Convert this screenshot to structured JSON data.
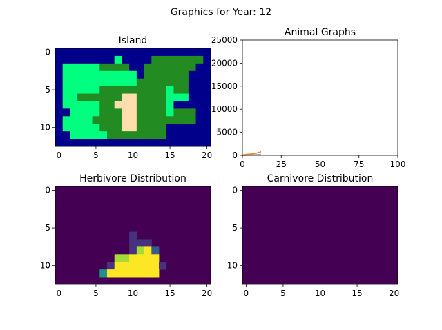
{
  "figure": {
    "suptitle": "Graphics for Year: 12"
  },
  "colors": {
    "ocean": "#00008b",
    "lowland": "#00ff7f",
    "highland": "#228b22",
    "desert": "#ffdead",
    "herb_series": "#1f77b4",
    "carn_series": "#ff7f0e",
    "viridis_0": "#440154",
    "viridis_1": "#46327e",
    "viridis_2": "#365c8d",
    "viridis_3": "#21918c",
    "viridis_4": "#3bbb75",
    "viridis_5": "#a5db36",
    "viridis_6": "#fde725"
  },
  "chart_data": [
    {
      "id": "island",
      "type": "heatmap",
      "title": "Island",
      "xlim": [
        -0.5,
        20.5
      ],
      "ylim": [
        12.5,
        -0.5
      ],
      "xticks": [
        0,
        5,
        10,
        15,
        20
      ],
      "yticks": [
        0,
        5,
        10
      ],
      "legend": {
        "W": "ocean",
        "L": "lowland",
        "H": "highland",
        "D": "desert"
      },
      "grid": [
        "WWWWWWWWWWWWWWWWWWWWW",
        "WWWWWWWWLWWWWHHHHHHHW",
        "WLLLLLHHHHWWHHHHHHHWW",
        "WLLLLLLLLLLWHHHHHHWWW",
        "WLLLLLLLLLLHHHHHHHWWW",
        "WLLLLLHHHHHHHHHLHHWWW",
        "WLLHHHHHHDDHHHHLLLWWW",
        "WLLLLLHHDDDHHHHLWWWWW",
        "WWLLLLHHHDDHHHHLHHHWW",
        "WLLLLHHHHDDHHHHHHHHWW",
        "WLLLLLHHHDDHHHHWWWWWW",
        "WWLLLLLHHHHHHHHWWWWWW",
        "WWWWWWWWWWWWWWWWWWWWW"
      ]
    },
    {
      "id": "animals",
      "type": "line",
      "title": "Animal Graphs",
      "xlim": [
        0,
        100
      ],
      "ylim": [
        0,
        25000
      ],
      "xticks": [
        0,
        25,
        50,
        75,
        100
      ],
      "yticks": [
        0,
        5000,
        10000,
        15000,
        20000,
        25000
      ],
      "series": [
        {
          "color_key": "herb_series",
          "x": [
            0,
            1,
            2,
            3,
            4,
            5,
            6,
            7,
            8,
            9,
            10,
            11,
            12
          ],
          "y": [
            10,
            20,
            30,
            40,
            50,
            60,
            70,
            80,
            90,
            100,
            110,
            120,
            130
          ]
        },
        {
          "color_key": "carn_series",
          "x": [
            0,
            1,
            2,
            3,
            4,
            5,
            6,
            7,
            8,
            9,
            10,
            11,
            12
          ],
          "y": [
            50,
            120,
            180,
            230,
            260,
            290,
            320,
            370,
            430,
            500,
            580,
            680,
            790
          ]
        }
      ]
    },
    {
      "id": "herbivores",
      "type": "heatmap",
      "title": "Herbivore Distribution",
      "xlim": [
        -0.5,
        20.5
      ],
      "ylim": [
        12.5,
        -0.5
      ],
      "xticks": [
        0,
        5,
        10,
        15,
        20
      ],
      "yticks": [
        0,
        5,
        10
      ],
      "colormap": [
        "viridis_0",
        "viridis_1",
        "viridis_2",
        "viridis_3",
        "viridis_4",
        "viridis_5",
        "viridis_6"
      ],
      "cells": [
        {
          "r": 6,
          "c": 10,
          "v": 1
        },
        {
          "r": 7,
          "c": 10,
          "v": 1
        },
        {
          "r": 7,
          "c": 11,
          "v": 1
        },
        {
          "r": 7,
          "c": 12,
          "v": 1
        },
        {
          "r": 8,
          "c": 10,
          "v": 1
        },
        {
          "r": 8,
          "c": 11,
          "v": 5
        },
        {
          "r": 8,
          "c": 12,
          "v": 6
        },
        {
          "r": 8,
          "c": 13,
          "v": 2
        },
        {
          "r": 9,
          "c": 8,
          "v": 5
        },
        {
          "r": 9,
          "c": 9,
          "v": 5
        },
        {
          "r": 9,
          "c": 10,
          "v": 6
        },
        {
          "r": 9,
          "c": 11,
          "v": 6
        },
        {
          "r": 9,
          "c": 12,
          "v": 6
        },
        {
          "r": 9,
          "c": 13,
          "v": 6
        },
        {
          "r": 10,
          "c": 7,
          "v": 1
        },
        {
          "r": 10,
          "c": 8,
          "v": 6
        },
        {
          "r": 10,
          "c": 9,
          "v": 6
        },
        {
          "r": 10,
          "c": 10,
          "v": 6
        },
        {
          "r": 10,
          "c": 11,
          "v": 6
        },
        {
          "r": 10,
          "c": 12,
          "v": 6
        },
        {
          "r": 10,
          "c": 13,
          "v": 6
        },
        {
          "r": 10,
          "c": 14,
          "v": 1
        },
        {
          "r": 11,
          "c": 6,
          "v": 3
        },
        {
          "r": 11,
          "c": 7,
          "v": 6
        },
        {
          "r": 11,
          "c": 8,
          "v": 6
        },
        {
          "r": 11,
          "c": 9,
          "v": 6
        },
        {
          "r": 11,
          "c": 10,
          "v": 6
        },
        {
          "r": 11,
          "c": 11,
          "v": 6
        },
        {
          "r": 11,
          "c": 12,
          "v": 6
        },
        {
          "r": 11,
          "c": 13,
          "v": 6
        }
      ]
    },
    {
      "id": "carnivores",
      "type": "heatmap",
      "title": "Carnivore Distribution",
      "xlim": [
        -0.5,
        20.5
      ],
      "ylim": [
        12.5,
        -0.5
      ],
      "xticks": [
        0,
        5,
        10,
        15,
        20
      ],
      "yticks": [
        0,
        5,
        10
      ],
      "colormap": [
        "viridis_0",
        "viridis_1",
        "viridis_2",
        "viridis_3",
        "viridis_4",
        "viridis_5",
        "viridis_6"
      ],
      "cells": []
    }
  ]
}
